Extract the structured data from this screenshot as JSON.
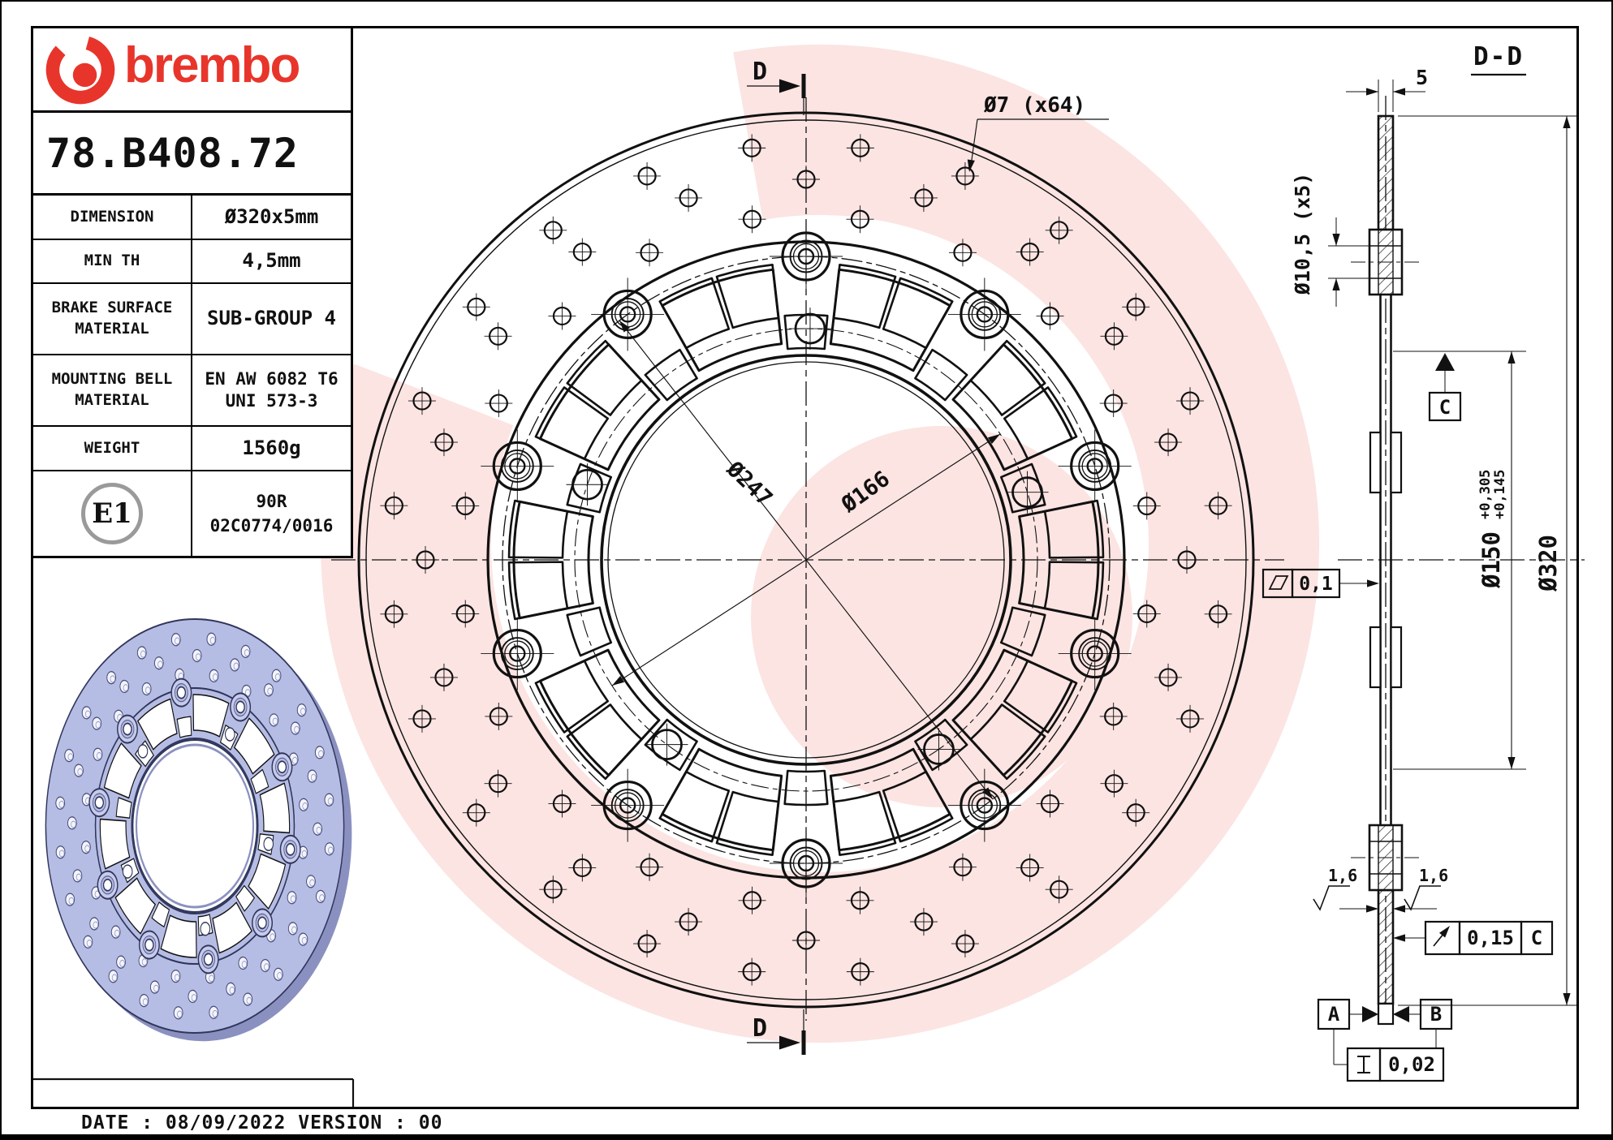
{
  "header": {
    "brand": "brembo",
    "part_number": "78.B408.72"
  },
  "spec_table": {
    "rows": [
      {
        "label": [
          "DIMENSION"
        ],
        "value": [
          "Ø320x5mm"
        ]
      },
      {
        "label": [
          "MIN TH"
        ],
        "value": [
          "4,5mm"
        ]
      },
      {
        "label": [
          "BRAKE SURFACE",
          "MATERIAL"
        ],
        "value": [
          "SUB-GROUP 4"
        ]
      },
      {
        "label": [
          "MOUNTING BELL",
          "MATERIAL"
        ],
        "value": [
          "EN AW 6082 T6",
          "UNI 573-3"
        ]
      },
      {
        "label": [
          "WEIGHT"
        ],
        "value": [
          "1560g"
        ]
      }
    ]
  },
  "approval": {
    "badge": "E1",
    "code_lines": [
      "90R",
      "02C0774/0016"
    ]
  },
  "front_view": {
    "section_marker": "D",
    "hole_callout": "Ø7 (x64)",
    "bolt_circle_dia": "Ø247",
    "bell_pcd_dia": "Ø166"
  },
  "section_view": {
    "title": "D-D",
    "thickness": "5",
    "hole_callout": "Ø10,5 (x5)",
    "datum_c": "C",
    "bore_dia": "Ø150",
    "bore_tol_upper": "+0,305",
    "bore_tol_lower": "+0,145",
    "outer_dia": "Ø320",
    "flatness_tol": "0,1",
    "roughness_left": "1,6",
    "roughness_right": "1,6",
    "runout_tol": "0,15",
    "runout_datum": "C",
    "datum_a": "A",
    "datum_b": "B",
    "parallelism_tol": "0,02"
  },
  "footer": {
    "date_line": "DATE : 08/09/2022 VERSION : 00"
  },
  "colors": {
    "brand_red": "#e8352b",
    "line_black": "#111111",
    "watermark_pink": "#f9e4e2",
    "disc_lavender": "#b6bde5",
    "badge_gray": "#9a9a9a"
  }
}
